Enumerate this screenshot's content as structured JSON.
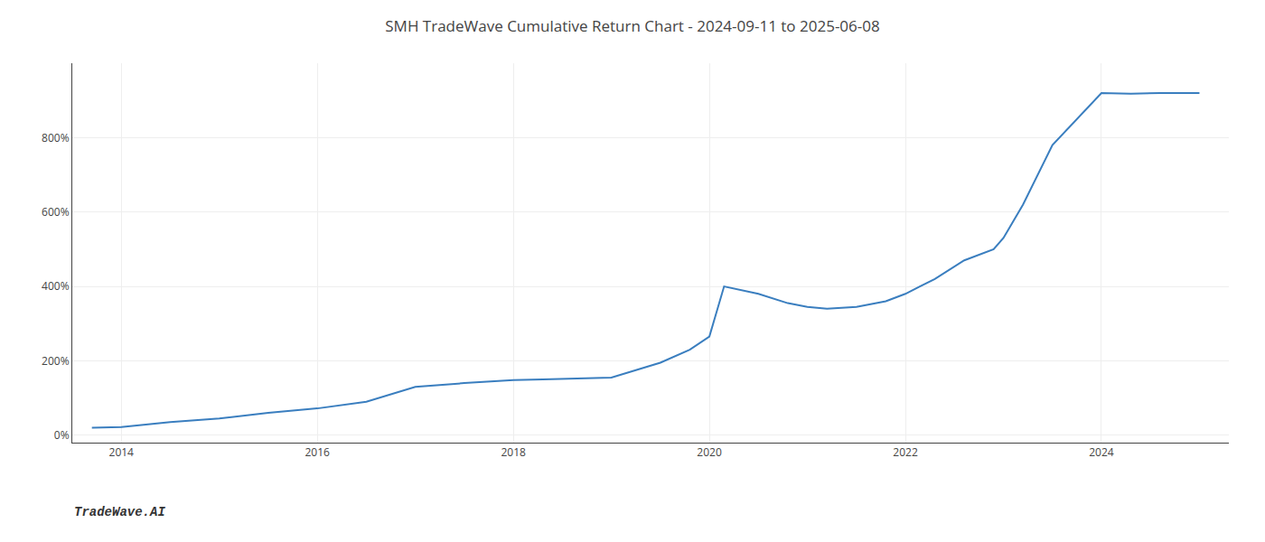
{
  "chart_data": {
    "type": "line",
    "title": "SMH TradeWave Cumulative Return Chart - 2024-09-11 to 2025-06-08",
    "annotations": [
      "TradeWave.AI"
    ],
    "x": [
      2013.7,
      2014.0,
      2014.5,
      2015.0,
      2015.5,
      2016.0,
      2016.5,
      2017.0,
      2017.5,
      2018.0,
      2018.3,
      2018.7,
      2019.0,
      2019.5,
      2019.8,
      2020.0,
      2020.15,
      2020.5,
      2020.8,
      2021.0,
      2021.2,
      2021.5,
      2021.8,
      2022.0,
      2022.3,
      2022.6,
      2022.9,
      2023.0,
      2023.2,
      2023.5,
      2024.0,
      2024.3,
      2024.6,
      2025.0
    ],
    "values": [
      20,
      22,
      35,
      45,
      60,
      72,
      90,
      130,
      140,
      148,
      150,
      152,
      155,
      195,
      230,
      265,
      400,
      380,
      355,
      345,
      340,
      345,
      360,
      380,
      420,
      470,
      500,
      530,
      620,
      780,
      920,
      918,
      920,
      920
    ],
    "color": "#3a7ebf",
    "xlim": [
      2013.5,
      2025.3
    ],
    "ylim": [
      -20,
      1000
    ],
    "xticks": [
      2014,
      2016,
      2018,
      2020,
      2022,
      2024
    ],
    "yticks": [
      {
        "value": 0,
        "label": "0%"
      },
      {
        "value": 200,
        "label": "200%"
      },
      {
        "value": 400,
        "label": "400%"
      },
      {
        "value": 600,
        "label": "600%"
      },
      {
        "value": 800,
        "label": "800%"
      }
    ],
    "grid": true
  }
}
